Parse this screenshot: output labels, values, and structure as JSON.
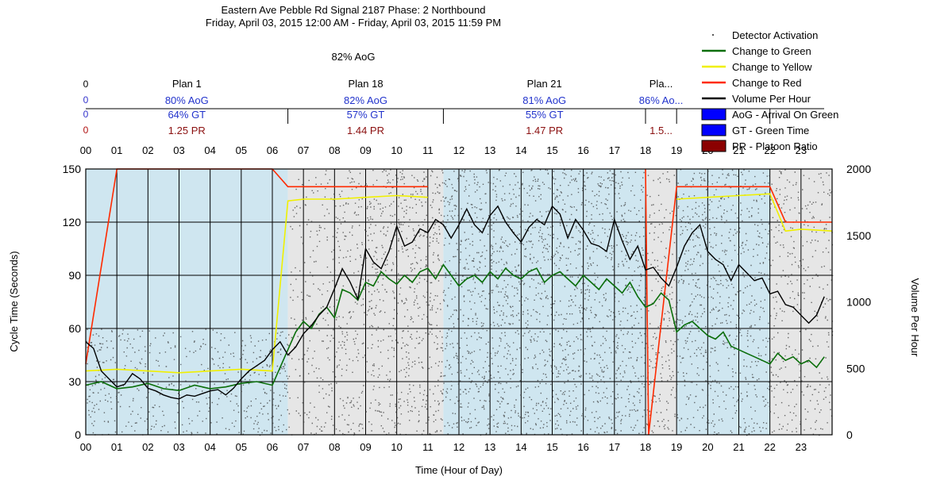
{
  "chart_data": {
    "type": "scatter",
    "title_lines": [
      "Eastern Ave Pebble Rd Signal 2187 Phase: 2 Northbound",
      "Friday, April 03, 2015 12:00 AM - Friday, April 03, 2015 11:59 PM"
    ],
    "summary": "82% AoG",
    "xlabel": "Time (Hour of Day)",
    "ylabel": "Cycle Time (Seconds)",
    "y2label": "Volume Per Hour",
    "xlim": [
      0,
      24
    ],
    "ylim": [
      0,
      150
    ],
    "y2lim": [
      0,
      2000
    ],
    "x_ticks": [
      "00",
      "01",
      "02",
      "03",
      "04",
      "05",
      "06",
      "07",
      "08",
      "09",
      "10",
      "11",
      "12",
      "13",
      "14",
      "15",
      "16",
      "17",
      "18",
      "19",
      "20",
      "21",
      "22",
      "23"
    ],
    "y_ticks": [
      "0",
      "30",
      "60",
      "90",
      "120",
      "150"
    ],
    "y2_ticks": [
      "0",
      "500",
      "1000",
      "1500",
      "2000"
    ],
    "grid": true,
    "legend_position": "top-right",
    "legend": [
      {
        "label": "Detector Activation",
        "color": "#555555",
        "kind": "dot"
      },
      {
        "label": "Change to Green",
        "color": "#0a6e0a",
        "kind": "line"
      },
      {
        "label": "Change to Yellow",
        "color": "#f0f000",
        "kind": "line"
      },
      {
        "label": "Change to Red",
        "color": "#ff2a00",
        "kind": "line"
      },
      {
        "label": "Volume Per Hour",
        "color": "#000000",
        "kind": "line"
      },
      {
        "label": "AoG - Arrival On Green",
        "color": "#0000ff",
        "kind": "box"
      },
      {
        "label": "GT - Green Time",
        "color": "#0000ff",
        "kind": "box"
      },
      {
        "label": "PR - Platoon Ratio",
        "color": "#8b0000",
        "kind": "box"
      }
    ],
    "plan_header_stub": [
      "0",
      "0",
      "0",
      "0"
    ],
    "plans": [
      {
        "name": "Plan 1",
        "aog": "80% AoG",
        "gt": "64% GT",
        "pr": "1.25 PR",
        "start": 0,
        "end": 6.5,
        "shade": "#cfe6f0"
      },
      {
        "name": "Plan 18",
        "aog": "82% AoG",
        "gt": "57% GT",
        "pr": "1.44 PR",
        "start": 6.5,
        "end": 11.5,
        "shade": "#e6e6e6"
      },
      {
        "name": "Plan 21",
        "aog": "81% AoG",
        "gt": "55% GT",
        "pr": "1.47 PR",
        "start": 11.5,
        "end": 18,
        "shade": "#cfe6f0"
      },
      {
        "name": "Pla...",
        "aog": "86% Ao...",
        "gt": "",
        "pr": "1.5...",
        "start": 18,
        "end": 19,
        "shade": "#e6e6e6"
      },
      {
        "name": "",
        "aog": "",
        "gt": "",
        "pr": "",
        "start": 19,
        "end": 22,
        "shade": "#cfe6f0"
      },
      {
        "name": "",
        "aog": "",
        "gt": "",
        "pr": "",
        "start": 22,
        "end": 24,
        "shade": "#e6e6e6"
      }
    ],
    "series": [
      {
        "name": "Volume Per Hour",
        "axis": "y2",
        "color": "#000000",
        "x": [
          0,
          0.25,
          0.5,
          0.75,
          1,
          1.25,
          1.5,
          1.75,
          2,
          2.25,
          2.5,
          2.75,
          3,
          3.25,
          3.5,
          3.75,
          4,
          4.25,
          4.5,
          4.75,
          5,
          5.25,
          5.5,
          5.75,
          6,
          6.25,
          6.5,
          6.75,
          7,
          7.25,
          7.5,
          7.75,
          8,
          8.25,
          8.5,
          8.75,
          9,
          9.25,
          9.5,
          9.75,
          10,
          10.25,
          10.5,
          10.75,
          11,
          11.25,
          11.5,
          11.75,
          12,
          12.25,
          12.5,
          12.75,
          13,
          13.25,
          13.5,
          13.75,
          14,
          14.25,
          14.5,
          14.75,
          15,
          15.25,
          15.5,
          15.75,
          16,
          16.25,
          16.5,
          16.75,
          17,
          17.25,
          17.5,
          17.75,
          18,
          18.25,
          18.5,
          18.75,
          19,
          19.25,
          19.5,
          19.75,
          20,
          20.25,
          20.5,
          20.75,
          21,
          21.25,
          21.5,
          21.75,
          22,
          22.25,
          22.5,
          22.75,
          23,
          23.25,
          23.5,
          23.75
        ],
        "y": [
          700,
          650,
          480,
          420,
          360,
          380,
          460,
          420,
          350,
          330,
          300,
          280,
          270,
          300,
          290,
          310,
          330,
          340,
          300,
          350,
          420,
          480,
          520,
          560,
          640,
          700,
          600,
          660,
          760,
          820,
          900,
          960,
          1100,
          1250,
          1150,
          1020,
          1400,
          1300,
          1250,
          1380,
          1570,
          1420,
          1450,
          1550,
          1520,
          1620,
          1580,
          1480,
          1580,
          1700,
          1580,
          1520,
          1650,
          1720,
          1600,
          1520,
          1450,
          1560,
          1620,
          1580,
          1720,
          1660,
          1480,
          1620,
          1540,
          1440,
          1420,
          1380,
          1620,
          1460,
          1320,
          1420,
          1240,
          1260,
          1180,
          1120,
          1260,
          1420,
          1520,
          1580,
          1380,
          1320,
          1280,
          1160,
          1280,
          1220,
          1160,
          1180,
          1060,
          1080,
          980,
          960,
          900,
          840,
          900,
          1040
        ]
      },
      {
        "name": "Change to Green",
        "axis": "y",
        "color": "#0a6e0a",
        "x": [
          0,
          0.5,
          1,
          1.5,
          2,
          2.5,
          3,
          3.5,
          4,
          4.5,
          5,
          5.5,
          6,
          6.5,
          6.75,
          7,
          7.25,
          7.5,
          7.75,
          8,
          8.25,
          8.5,
          8.75,
          9,
          9.25,
          9.5,
          9.75,
          10,
          10.25,
          10.5,
          10.75,
          11,
          11.25,
          11.5,
          11.75,
          12,
          12.25,
          12.5,
          12.75,
          13,
          13.25,
          13.5,
          13.75,
          14,
          14.25,
          14.5,
          14.75,
          15,
          15.25,
          15.5,
          15.75,
          16,
          16.25,
          16.5,
          16.75,
          17,
          17.25,
          17.5,
          17.75,
          18,
          18.25,
          18.5,
          18.75,
          19,
          19.25,
          19.5,
          19.75,
          20,
          20.25,
          20.5,
          20.75,
          21,
          21.25,
          21.5,
          21.75,
          22,
          22.25,
          22.5,
          22.75,
          23,
          23.25,
          23.5,
          23.75
        ],
        "y": [
          28,
          30,
          26,
          27,
          29,
          26,
          25,
          28,
          26,
          27,
          29,
          30,
          28,
          48,
          58,
          64,
          60,
          68,
          72,
          66,
          82,
          80,
          76,
          86,
          84,
          92,
          88,
          85,
          90,
          86,
          92,
          94,
          88,
          96,
          90,
          84,
          88,
          90,
          86,
          92,
          88,
          94,
          90,
          88,
          92,
          94,
          86,
          90,
          92,
          88,
          84,
          90,
          86,
          82,
          88,
          84,
          80,
          86,
          78,
          72,
          74,
          80,
          76,
          58,
          62,
          64,
          60,
          56,
          54,
          58,
          50,
          48,
          46,
          44,
          42,
          40,
          46,
          42,
          44,
          40,
          42,
          38,
          44
        ]
      },
      {
        "name": "Change to Yellow",
        "axis": "y",
        "color": "#f0f000",
        "x": [
          0,
          1,
          2,
          3,
          4,
          5,
          6,
          6.5,
          7,
          8,
          9,
          10,
          11,
          11.5,
          18,
          19,
          20,
          21,
          22,
          22.5,
          23,
          24
        ],
        "y": [
          36,
          37,
          36,
          35,
          36,
          37,
          36,
          132,
          133,
          133,
          134,
          135,
          134,
          null,
          null,
          133,
          134,
          135,
          136,
          115,
          116,
          115
        ]
      },
      {
        "name": "Change to Red",
        "axis": "y",
        "color": "#ff2a00",
        "x": [
          0,
          1,
          2,
          3,
          4,
          5,
          6,
          6.5,
          7,
          8,
          9,
          10,
          11,
          11.5,
          18,
          18.1,
          19,
          20,
          21,
          22,
          22.5,
          23,
          24
        ],
        "y": [
          40,
          150,
          150,
          150,
          150,
          150,
          150,
          140,
          140,
          140,
          140,
          140,
          140,
          null,
          150,
          0,
          140,
          140,
          140,
          140,
          120,
          120,
          120
        ]
      }
    ]
  }
}
